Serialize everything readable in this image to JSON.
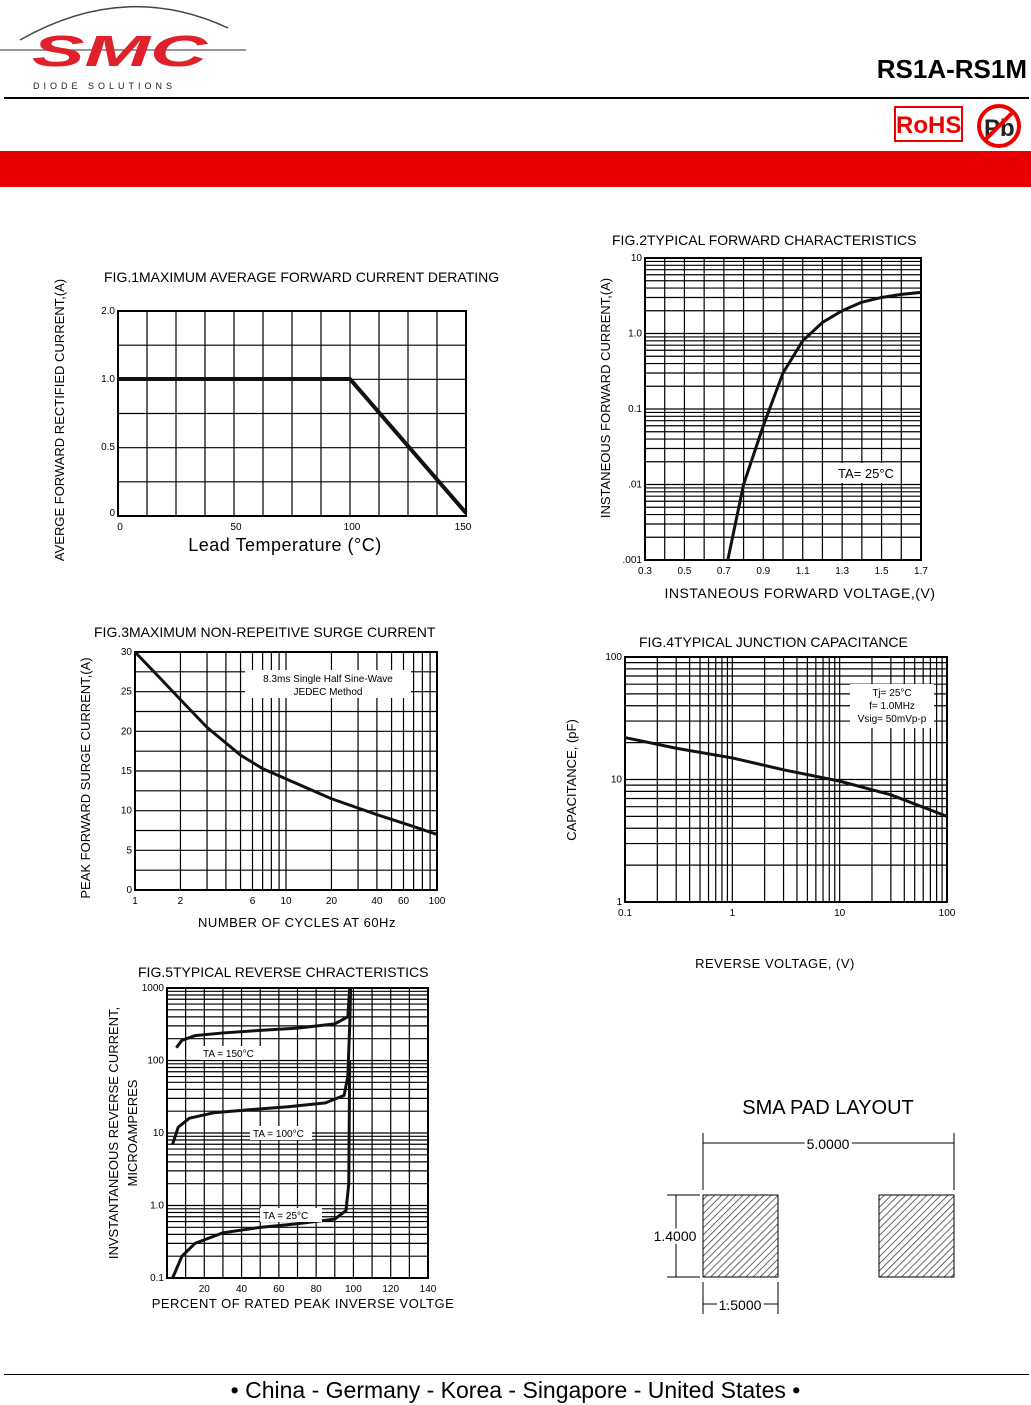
{
  "header": {
    "logo_text": "SMC",
    "logo_subtext": "DIODE SOLUTIONS",
    "part_number": "RS1A-RS1M",
    "rohs_label": "RoHS",
    "pb_free_label": "Pb",
    "accent_color": "#e80000"
  },
  "footer": {
    "text": "• China  -  Germany  -  Korea  -  Singapore  -  United States •"
  },
  "chart_data": [
    {
      "id": "fig1",
      "type": "line",
      "title": "FIG.1MAXIMUM AVERAGE FORWARD CURRENT DERATING",
      "xlabel": "Lead Temperature (°C)",
      "ylabel": "AVERGE FORWARD  RECTIFIED CURRENT,(A)",
      "xlim": [
        0,
        150
      ],
      "x_ticks": [
        "0",
        "50",
        "100",
        "150"
      ],
      "y_ticks": [
        "0",
        "0.5",
        "1.0",
        "2.0"
      ],
      "grid": true,
      "series": [
        {
          "x": [
            0,
            100,
            150
          ],
          "y": [
            1.0,
            1.0,
            0
          ]
        }
      ]
    },
    {
      "id": "fig2",
      "type": "line",
      "title": "FIG.2TYPICAL FORWARD CHARACTERISTICS",
      "xlabel": "INSTANEOUS FORWARD VOLTAGE,(V)",
      "ylabel": "INSTANEOUS FORWARD CURRENT,(A)",
      "xlim": [
        0.3,
        1.7
      ],
      "ylim": [
        0.001,
        10
      ],
      "yscale": "log",
      "x_ticks": [
        "0.3",
        "0.5",
        "0.7",
        "0.9",
        "1.1",
        "1.3",
        "1.5",
        "1.7"
      ],
      "y_ticks": [
        ".001",
        ".01",
        "0.1",
        "1.0",
        "10"
      ],
      "annotation": "TA= 25°C",
      "grid": true,
      "series": [
        {
          "x": [
            0.72,
            0.8,
            0.9,
            1.0,
            1.1,
            1.2,
            1.3,
            1.4,
            1.5,
            1.6,
            1.7
          ],
          "y": [
            0.001,
            0.01,
            0.06,
            0.3,
            0.8,
            1.4,
            2.0,
            2.6,
            3.0,
            3.3,
            3.5
          ]
        }
      ]
    },
    {
      "id": "fig3",
      "type": "line",
      "title": "FIG.3MAXIMUM NON-REPEITIVE SURGE CURRENT",
      "xlabel": "NUMBER OF CYCLES AT 60Hz",
      "ylabel": "PEAK FORWARD SURGE CURRENT,(A)",
      "xlim": [
        1,
        100
      ],
      "xscale": "log",
      "ylim": [
        0,
        30
      ],
      "x_ticks": [
        "1",
        "2",
        "6",
        "10",
        "20",
        "40",
        "60",
        "100"
      ],
      "y_ticks": [
        "0",
        "5",
        "10",
        "15",
        "20",
        "25",
        "30"
      ],
      "annotation": [
        "8.3ms Single Half Sine-Wave",
        "JEDEC Method"
      ],
      "grid": true,
      "series": [
        {
          "x": [
            1,
            1.5,
            2,
            3,
            5,
            7,
            10,
            20,
            40,
            70,
            100
          ],
          "y": [
            30,
            26.5,
            24,
            20.5,
            17,
            15.3,
            14,
            11.5,
            9.5,
            8,
            7
          ]
        }
      ]
    },
    {
      "id": "fig4",
      "type": "line",
      "title": "FIG.4TYPICAL JUNCTION CAPACITANCE",
      "xlabel": "REVERSE VOLTAGE, (V)",
      "ylabel": "CAPACITANCE, (pF)",
      "xlim": [
        0.1,
        100
      ],
      "xscale": "log",
      "ylim": [
        1,
        100
      ],
      "yscale": "log",
      "x_ticks": [
        "0.1",
        "1",
        "10",
        "100"
      ],
      "y_ticks": [
        "1",
        "10",
        "100"
      ],
      "annotation": [
        "Tj= 25°C",
        "f= 1.0MHz",
        "Vsig= 50mVp-p"
      ],
      "grid": true,
      "series": [
        {
          "x": [
            0.1,
            0.3,
            1,
            3,
            10,
            30,
            100
          ],
          "y": [
            22,
            18,
            15,
            12,
            9.7,
            7.5,
            5
          ]
        }
      ]
    },
    {
      "id": "fig5",
      "type": "line",
      "title": "FIG.5TYPICAL REVERSE CHRACTERISTICS",
      "xlabel": "PERCENT OF RATED PEAK INVERSE VOLTGE",
      "ylabel": [
        "INVSTANTANEOUS REVERSE CURRENT,",
        "MICROAMPERES"
      ],
      "xlim": [
        0,
        140
      ],
      "ylim": [
        0.1,
        1000
      ],
      "yscale": "log",
      "x_ticks": [
        "20",
        "40",
        "60",
        "80",
        "100",
        "120",
        "140"
      ],
      "y_ticks": [
        "0.1",
        "1.0",
        "10",
        "100",
        "1000"
      ],
      "grid": true,
      "series": [
        {
          "name": "TA = 150°C",
          "x": [
            5,
            8,
            15,
            30,
            50,
            70,
            90,
            97,
            98
          ],
          "y": [
            150,
            190,
            220,
            240,
            260,
            280,
            320,
            400,
            1000
          ]
        },
        {
          "name": "TA = 100°C",
          "x": [
            3,
            6,
            12,
            25,
            45,
            65,
            85,
            95,
            97,
            98,
            98.5
          ],
          "y": [
            7,
            12,
            16,
            19,
            21,
            23,
            26,
            33,
            60,
            300,
            1000
          ]
        },
        {
          "name": "TA = 25°C",
          "x": [
            3,
            8,
            15,
            30,
            50,
            70,
            90,
            96,
            97.5,
            98
          ],
          "y": [
            0.1,
            0.2,
            0.3,
            0.42,
            0.5,
            0.56,
            0.65,
            0.85,
            2,
            100
          ]
        }
      ]
    }
  ],
  "pad_layout": {
    "title": "SMA PAD LAYOUT",
    "width_dim": "5.0000",
    "height_dim": "1.4000",
    "pad_width_dim": "1.5000"
  }
}
